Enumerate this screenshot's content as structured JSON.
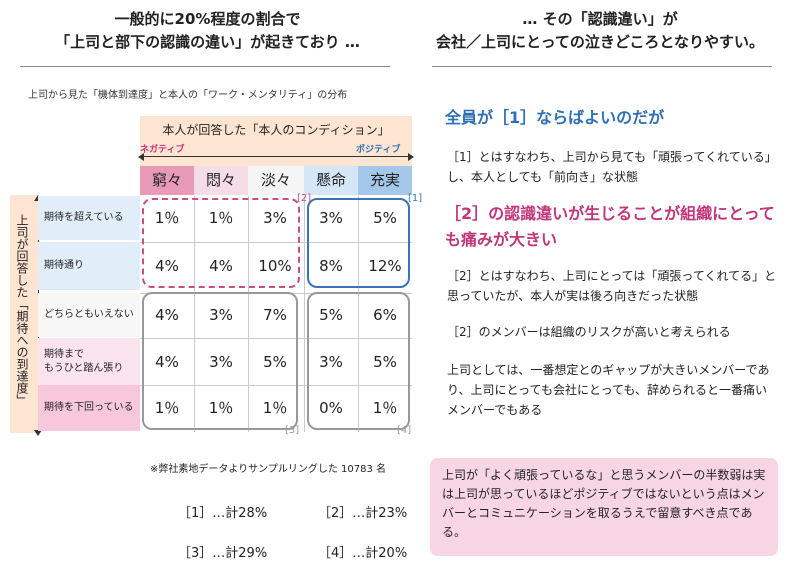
{
  "left_header": {
    "line1": "一般的に20%程度の割合で",
    "line2": "「上司と部下の認識の違い」が起きており …"
  },
  "right_header": {
    "line1": "… その「認識違い」が",
    "line2": "会社／上司にとっての泣きどころとなりやすい。"
  },
  "matrix": {
    "caption": "上司から見た「機体到達度」と本人の「ワーク・メンタリティ」の分布",
    "top_label": "本人が回答した「本人のコンディション」",
    "negative_label": "ネガティブ",
    "positive_label": "ポジティブ",
    "side_label": "上司が回答した「期待への到達度」",
    "columns": [
      "窮々",
      "悶々",
      "淡々",
      "懸命",
      "充実"
    ],
    "column_colors": [
      "#e89ab7",
      "#f4dde7",
      "#f5f5f5",
      "#d5e6f6",
      "#a5c8ea"
    ],
    "rows": [
      {
        "label": "期待を超えている",
        "values": [
          "1％",
          "1％",
          "3%",
          "3%",
          "5%"
        ]
      },
      {
        "label": "期待通り",
        "values": [
          "4%",
          "4%",
          "10%",
          "8%",
          "12%"
        ]
      },
      {
        "label": "どちらともいえない",
        "values": [
          "4%",
          "3%",
          "7%",
          "5%",
          "6%"
        ]
      },
      {
        "label": "期待まで\nもうひと踏ん張り",
        "values": [
          "4%",
          "3%",
          "5%",
          "3%",
          "5%"
        ]
      },
      {
        "label": "期待を下回っている",
        "values": [
          "1％",
          "1％",
          "1％",
          "0%",
          "1％"
        ]
      }
    ],
    "group_tags": [
      "[2]",
      "[1]",
      "[3]",
      "[4]"
    ],
    "source_note": "※弊社素地データよりサンプルリングした 10783 名"
  },
  "totals": [
    "［1］…計28%",
    "［2］…計23%",
    "［3］…計29%",
    "［4］…計20%"
  ],
  "right_panel": {
    "heading1": "全員が［1］ならばよいのだが",
    "para1": "［1］とはすなわち、上司から見ても「頑張ってくれている」し、本人としても「前向き」な状態",
    "heading2": "［2］の認識違いが生じることが組織にとっても痛みが大きい",
    "para2": "［2］とはすなわち、上司にとっては「頑張ってくれてる」と思っていたが、本人が実は後ろ向きだった状態",
    "para3": "［2］のメンバーは組織のリスクが高いと考えられる",
    "para4": "上司としては、一番想定とのギャップが大きいメンバーであり、上司にとっても会社にとっても、辞められると一番痛いメンバーでもある",
    "note": "上司が「よく頑張っているな」と思うメンバーの半数弱は実は上司が思っているほどポジティブではないという点はメンバーとコミュニケーションを取るうえで留意すべき点である。"
  },
  "colors": {
    "blue_heading": "#2e6fb5",
    "pink_heading": "#c2357a",
    "group2": "#c8507f",
    "group1": "#3b72b8",
    "group_gray": "#999999",
    "peach_band": "#fde5d2"
  }
}
